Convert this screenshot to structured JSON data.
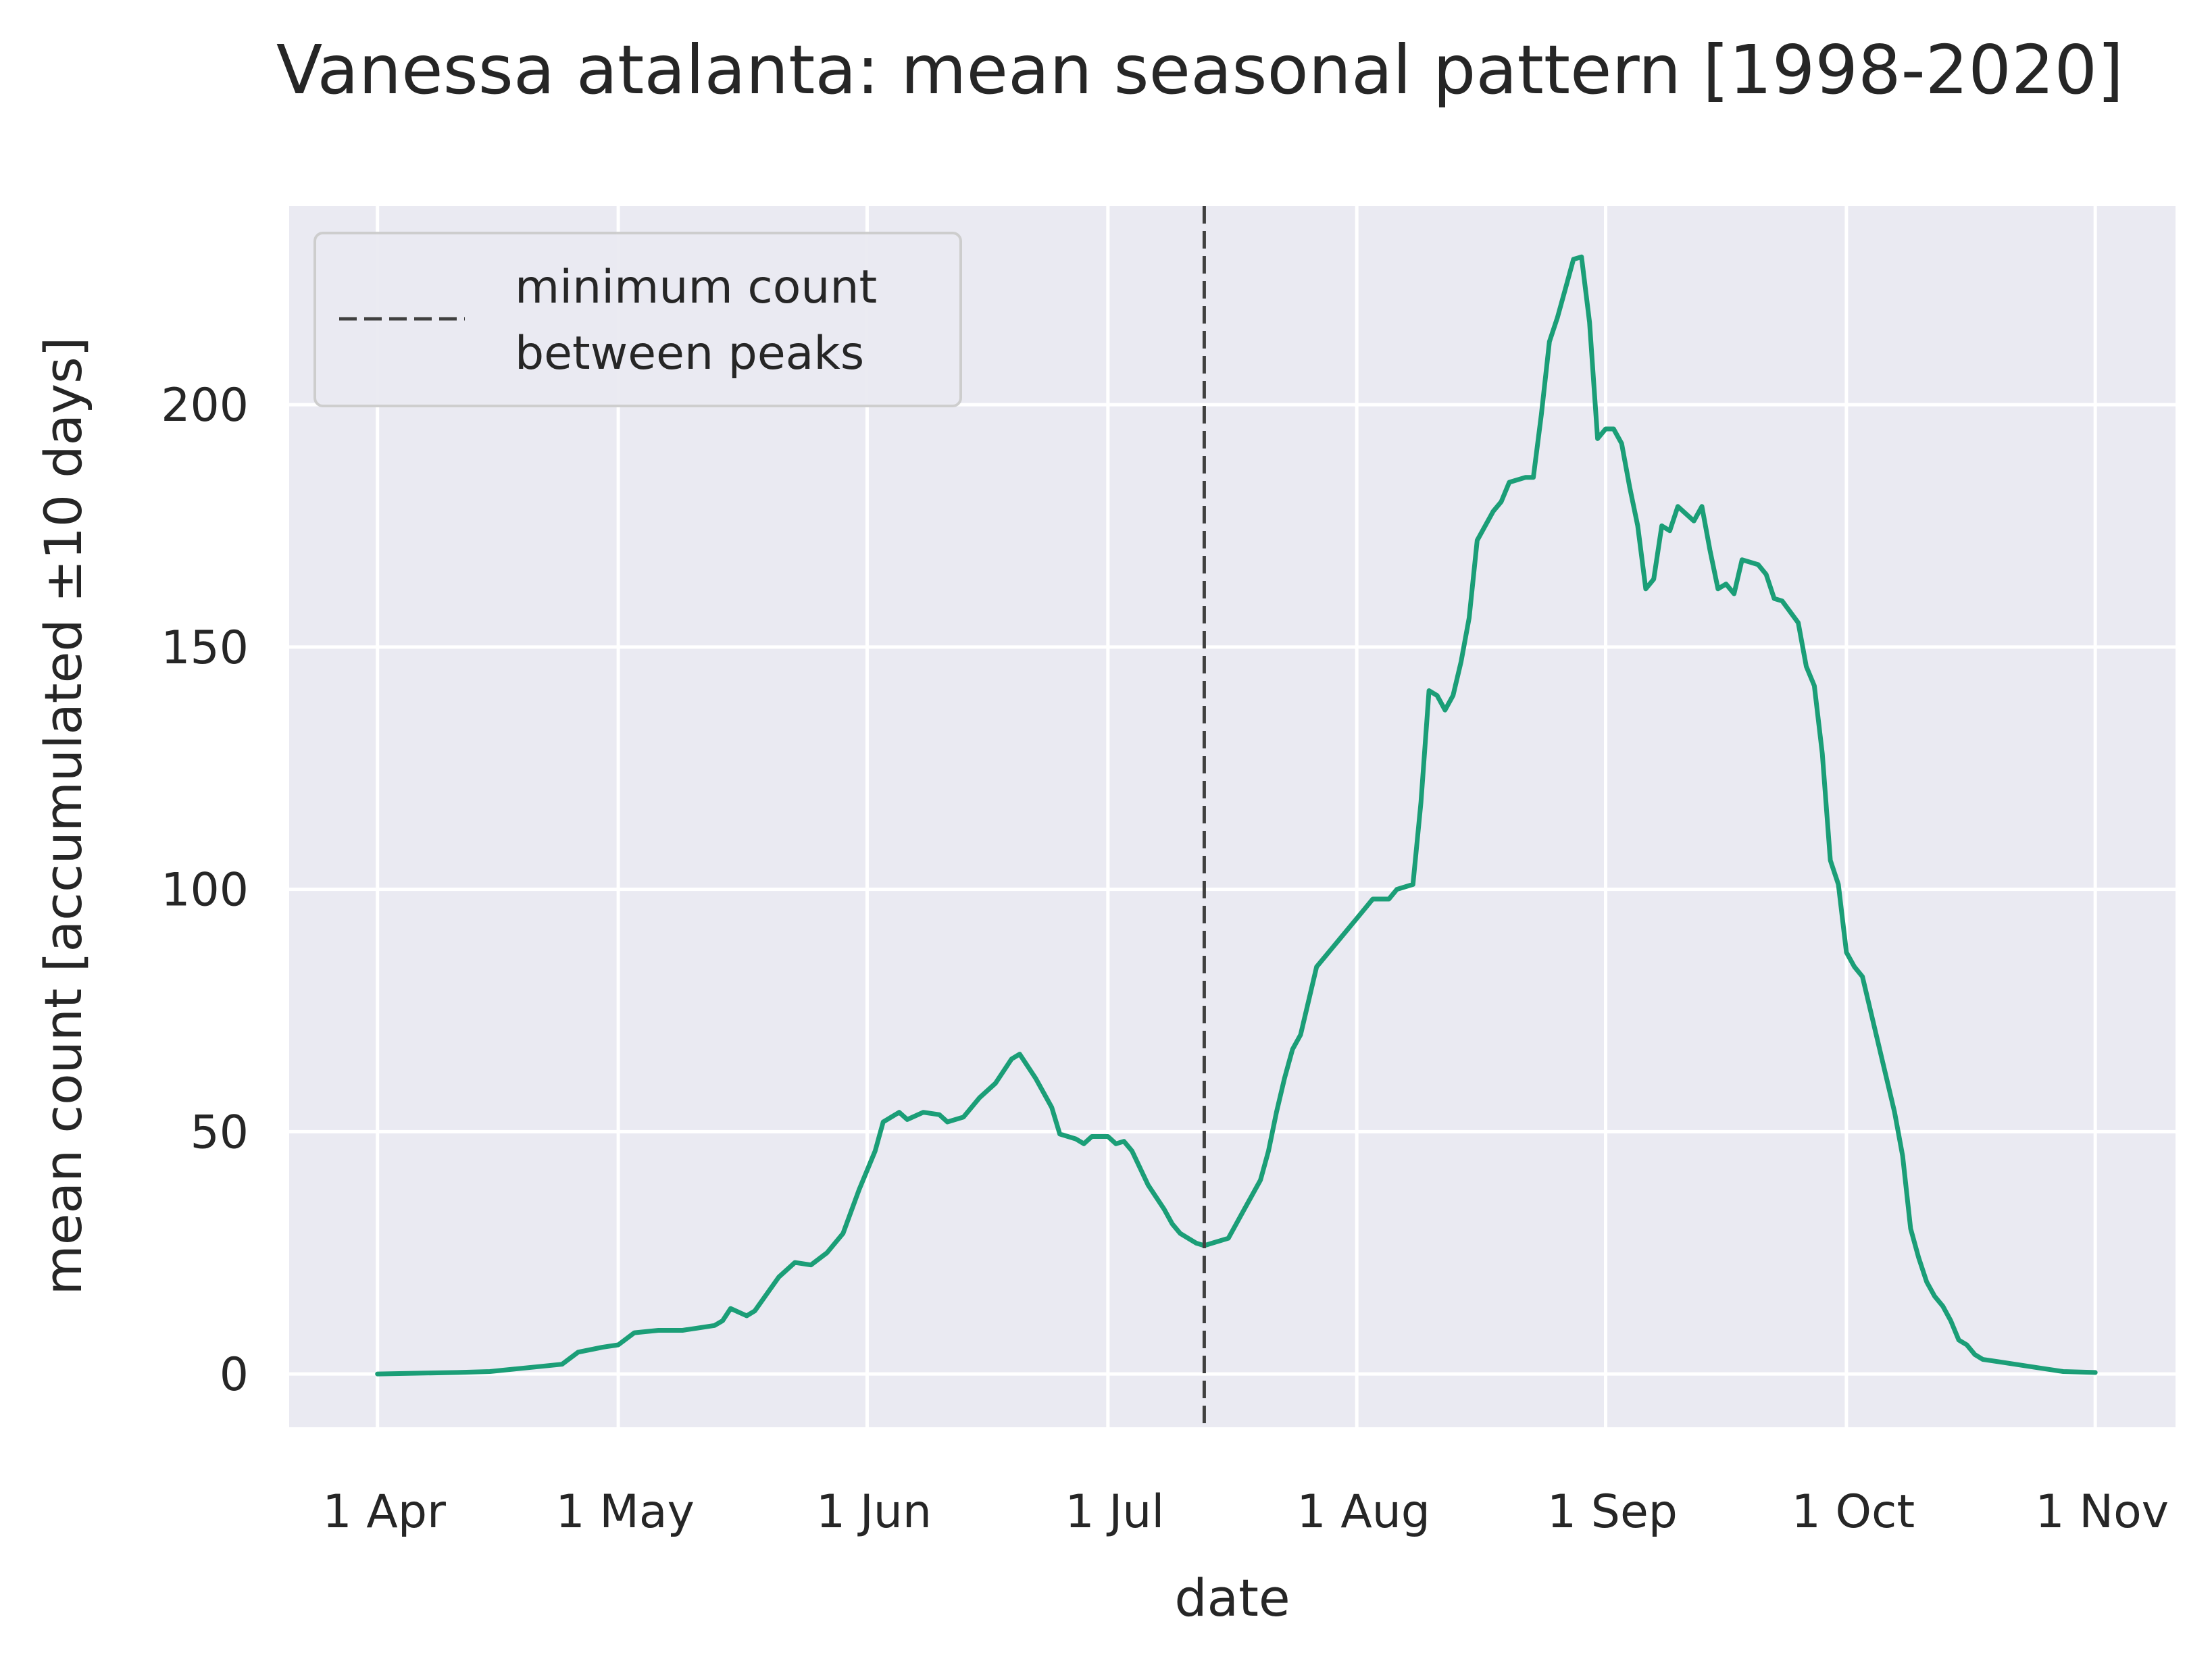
{
  "chart_data": {
    "type": "line",
    "title": "Vanessa atalanta: mean seasonal pattern [1998-2020]",
    "xlabel": "date",
    "ylabel": "mean count [accumulated ±10 days]",
    "x_ticks": [
      {
        "label": "1 Apr",
        "date": "04-01"
      },
      {
        "label": "1 May",
        "date": "05-01"
      },
      {
        "label": "1 Jun",
        "date": "06-01"
      },
      {
        "label": "1 Jul",
        "date": "07-01"
      },
      {
        "label": "1 Aug",
        "date": "08-01"
      },
      {
        "label": "1 Sep",
        "date": "09-01"
      },
      {
        "label": "1 Oct",
        "date": "10-01"
      },
      {
        "label": "1 Nov",
        "date": "11-01"
      }
    ],
    "y_ticks": [
      0,
      50,
      100,
      150,
      200
    ],
    "xlim": [
      "03-21",
      "11-11"
    ],
    "ylim": [
      -11,
      241
    ],
    "grid": true,
    "legend": {
      "placement": "top-left",
      "label_line1": "minimum count",
      "label_line2": "between peaks"
    },
    "vline": {
      "date": "07-13",
      "label": "minimum count between peaks",
      "color": "#404040"
    },
    "series": [
      {
        "color": "#1b9e77",
        "points": [
          [
            "04-01",
            0
          ],
          [
            "04-11",
            0.3
          ],
          [
            "04-15",
            0.5
          ],
          [
            "04-18",
            1
          ],
          [
            "04-21",
            1.5
          ],
          [
            "04-24",
            2
          ],
          [
            "04-26",
            4.5
          ],
          [
            "04-29",
            5.5
          ],
          [
            "05-01",
            6
          ],
          [
            "05-03",
            8.5
          ],
          [
            "05-06",
            9
          ],
          [
            "05-09",
            9
          ],
          [
            "05-11",
            9.5
          ],
          [
            "05-13",
            10
          ],
          [
            "05-14",
            11
          ],
          [
            "05-15",
            13.5
          ],
          [
            "05-17",
            12
          ],
          [
            "05-18",
            13
          ],
          [
            "05-21",
            20
          ],
          [
            "05-23",
            23
          ],
          [
            "05-25",
            22.5
          ],
          [
            "05-27",
            25
          ],
          [
            "05-29",
            29
          ],
          [
            "05-31",
            38
          ],
          [
            "06-02",
            46
          ],
          [
            "06-03",
            52
          ],
          [
            "06-05",
            54
          ],
          [
            "06-06",
            52.5
          ],
          [
            "06-08",
            54
          ],
          [
            "06-10",
            53.5
          ],
          [
            "06-11",
            52
          ],
          [
            "06-13",
            53
          ],
          [
            "06-15",
            57
          ],
          [
            "06-17",
            60
          ],
          [
            "06-19",
            65
          ],
          [
            "06-20",
            66
          ],
          [
            "06-22",
            61
          ],
          [
            "06-24",
            55
          ],
          [
            "06-25",
            49.5
          ],
          [
            "06-27",
            48.5
          ],
          [
            "06-28",
            47.5
          ],
          [
            "06-29",
            49
          ],
          [
            "07-01",
            49
          ],
          [
            "07-02",
            47.5
          ],
          [
            "07-03",
            48
          ],
          [
            "07-04",
            46
          ],
          [
            "07-06",
            39
          ],
          [
            "07-08",
            34
          ],
          [
            "07-09",
            31
          ],
          [
            "07-10",
            29
          ],
          [
            "07-11",
            28
          ],
          [
            "07-12",
            27
          ],
          [
            "07-13",
            26.5
          ],
          [
            "07-14",
            27
          ],
          [
            "07-16",
            28
          ],
          [
            "07-18",
            34
          ],
          [
            "07-20",
            40
          ],
          [
            "07-21",
            46
          ],
          [
            "07-22",
            54
          ],
          [
            "07-23",
            61
          ],
          [
            "07-24",
            67
          ],
          [
            "07-25",
            70
          ],
          [
            "07-26",
            77
          ],
          [
            "07-27",
            84
          ],
          [
            "07-29",
            88
          ],
          [
            "07-30",
            90
          ],
          [
            "08-01",
            94
          ],
          [
            "08-03",
            98
          ],
          [
            "08-05",
            98
          ],
          [
            "08-06",
            100
          ],
          [
            "08-08",
            101
          ],
          [
            "08-09",
            118
          ],
          [
            "08-10",
            141
          ],
          [
            "08-11",
            140
          ],
          [
            "08-12",
            137
          ],
          [
            "08-13",
            140
          ],
          [
            "08-14",
            147
          ],
          [
            "08-15",
            156
          ],
          [
            "08-16",
            172
          ],
          [
            "08-18",
            178
          ],
          [
            "08-19",
            180
          ],
          [
            "08-20",
            184
          ],
          [
            "08-22",
            185
          ],
          [
            "08-23",
            185
          ],
          [
            "08-24",
            198
          ],
          [
            "08-25",
            213
          ],
          [
            "08-26",
            218
          ],
          [
            "08-27",
            224
          ],
          [
            "08-28",
            230
          ],
          [
            "08-29",
            230.5
          ],
          [
            "08-30",
            217
          ],
          [
            "08-31",
            193
          ],
          [
            "09-01",
            195
          ],
          [
            "09-02",
            195
          ],
          [
            "09-03",
            192
          ],
          [
            "09-04",
            183
          ],
          [
            "09-05",
            175
          ],
          [
            "09-06",
            162
          ],
          [
            "09-07",
            164
          ],
          [
            "09-08",
            175
          ],
          [
            "09-09",
            174
          ],
          [
            "09-10",
            179
          ],
          [
            "09-12",
            176
          ],
          [
            "09-13",
            179
          ],
          [
            "09-14",
            170
          ],
          [
            "09-15",
            162
          ],
          [
            "09-16",
            163
          ],
          [
            "09-17",
            161
          ],
          [
            "09-18",
            168
          ],
          [
            "09-20",
            167
          ],
          [
            "09-21",
            165
          ],
          [
            "09-22",
            160
          ],
          [
            "09-23",
            159.5
          ],
          [
            "09-25",
            155
          ],
          [
            "09-26",
            146
          ],
          [
            "09-27",
            142
          ],
          [
            "09-28",
            128
          ],
          [
            "09-29",
            106
          ],
          [
            "09-30",
            101
          ],
          [
            "10-01",
            87
          ],
          [
            "10-02",
            84
          ],
          [
            "10-03",
            82
          ],
          [
            "10-04",
            75
          ],
          [
            "10-05",
            68
          ],
          [
            "10-06",
            61
          ],
          [
            "10-07",
            54
          ],
          [
            "10-08",
            45
          ],
          [
            "10-09",
            30
          ],
          [
            "10-10",
            24
          ],
          [
            "10-11",
            19
          ],
          [
            "10-12",
            16
          ],
          [
            "10-13",
            14
          ],
          [
            "10-14",
            11
          ],
          [
            "10-15",
            7
          ],
          [
            "10-16",
            6
          ],
          [
            "10-17",
            4
          ],
          [
            "10-18",
            3
          ],
          [
            "10-20",
            2.5
          ],
          [
            "10-22",
            2
          ],
          [
            "10-24",
            1.5
          ],
          [
            "10-26",
            1
          ],
          [
            "10-28",
            0.5
          ],
          [
            "11-01",
            0.3
          ]
        ]
      }
    ]
  }
}
